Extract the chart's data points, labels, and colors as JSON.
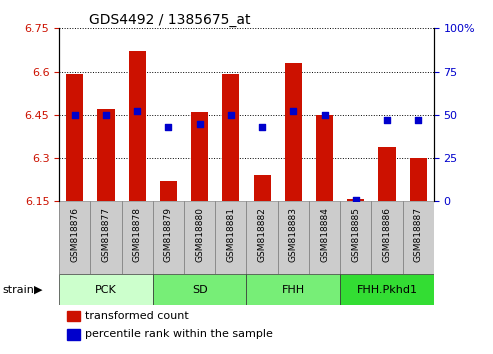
{
  "title": "GDS4492 / 1385675_at",
  "samples": [
    "GSM818876",
    "GSM818877",
    "GSM818878",
    "GSM818879",
    "GSM818880",
    "GSM818881",
    "GSM818882",
    "GSM818883",
    "GSM818884",
    "GSM818885",
    "GSM818886",
    "GSM818887"
  ],
  "transformed_count": [
    6.59,
    6.47,
    6.67,
    6.22,
    6.46,
    6.59,
    6.24,
    6.63,
    6.45,
    6.16,
    6.34,
    6.3
  ],
  "percentile_rank": [
    50,
    50,
    52,
    43,
    45,
    50,
    43,
    52,
    50,
    1,
    47,
    47
  ],
  "bar_color": "#cc1100",
  "dot_color": "#0000cc",
  "ylim_left": [
    6.15,
    6.75
  ],
  "ylim_right": [
    0,
    100
  ],
  "yticks_left": [
    6.15,
    6.3,
    6.45,
    6.6,
    6.75
  ],
  "yticks_right": [
    0,
    25,
    50,
    75,
    100
  ],
  "ytick_labels_left": [
    "6.15",
    "6.3",
    "6.45",
    "6.6",
    "6.75"
  ],
  "ytick_labels_right": [
    "0",
    "25",
    "50",
    "75",
    "100%"
  ],
  "groups": [
    {
      "label": "PCK",
      "start": 0,
      "end": 3,
      "color": "#ccffcc"
    },
    {
      "label": "SD",
      "start": 3,
      "end": 6,
      "color": "#77ee77"
    },
    {
      "label": "FHH",
      "start": 6,
      "end": 9,
      "color": "#77ee77"
    },
    {
      "label": "FHH.Pkhd1",
      "start": 9,
      "end": 12,
      "color": "#33dd33"
    }
  ],
  "strain_label": "strain",
  "legend_items": [
    {
      "label": "transformed count",
      "color": "#cc1100"
    },
    {
      "label": "percentile rank within the sample",
      "color": "#0000cc"
    }
  ],
  "bar_width": 0.55,
  "tick_cell_color": "#cccccc",
  "background_color": "#ffffff"
}
